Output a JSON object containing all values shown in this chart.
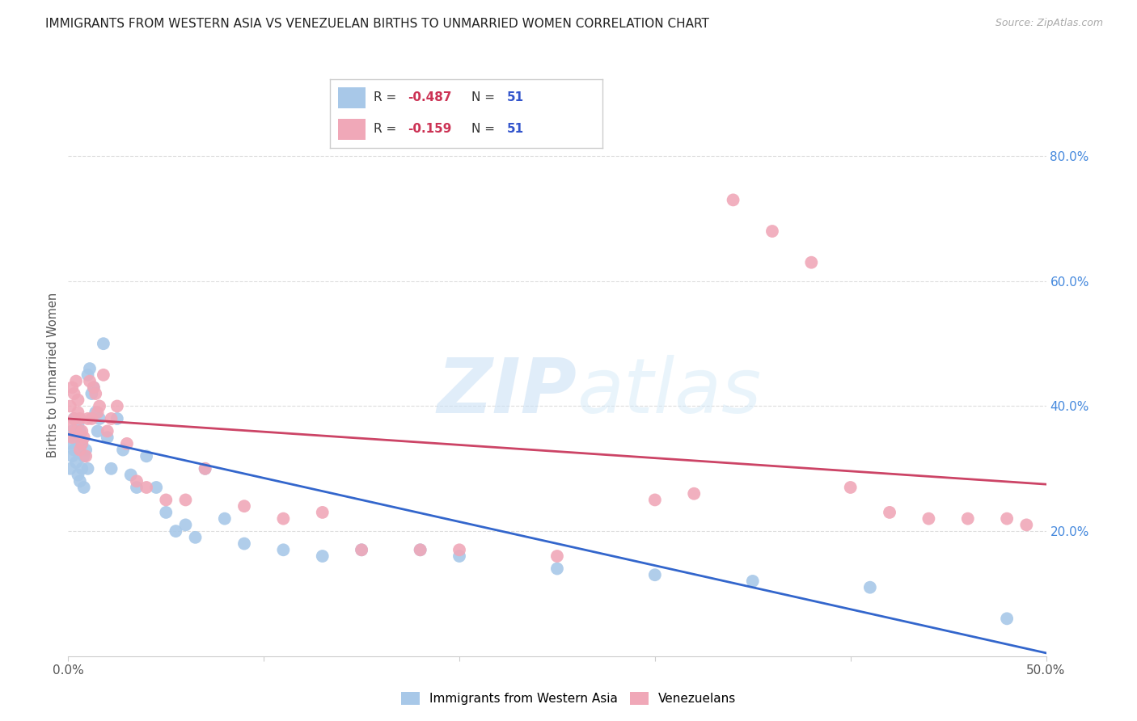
{
  "title": "IMMIGRANTS FROM WESTERN ASIA VS VENEZUELAN BIRTHS TO UNMARRIED WOMEN CORRELATION CHART",
  "source": "Source: ZipAtlas.com",
  "ylabel": "Births to Unmarried Women",
  "right_yticks": [
    "80.0%",
    "60.0%",
    "40.0%",
    "20.0%"
  ],
  "right_ytick_vals": [
    0.8,
    0.6,
    0.4,
    0.2
  ],
  "legend_blue_r": "-0.487",
  "legend_blue_n": "51",
  "legend_pink_r": "-0.159",
  "legend_pink_n": "51",
  "legend_label_blue": "Immigrants from Western Asia",
  "legend_label_pink": "Venezuelans",
  "blue_color": "#a8c8e8",
  "pink_color": "#f0a8b8",
  "blue_line_color": "#3366cc",
  "pink_line_color": "#cc4466",
  "watermark_zip": "ZIP",
  "watermark_atlas": "atlas",
  "background_color": "#ffffff",
  "blue_points_x": [
    0.001,
    0.001,
    0.002,
    0.002,
    0.003,
    0.003,
    0.004,
    0.004,
    0.005,
    0.005,
    0.006,
    0.006,
    0.007,
    0.007,
    0.008,
    0.008,
    0.009,
    0.01,
    0.01,
    0.011,
    0.012,
    0.013,
    0.014,
    0.015,
    0.016,
    0.018,
    0.02,
    0.022,
    0.025,
    0.028,
    0.032,
    0.035,
    0.04,
    0.045,
    0.05,
    0.055,
    0.06,
    0.065,
    0.07,
    0.08,
    0.09,
    0.11,
    0.13,
    0.15,
    0.18,
    0.2,
    0.25,
    0.3,
    0.35,
    0.41,
    0.48
  ],
  "blue_points_y": [
    0.34,
    0.3,
    0.36,
    0.32,
    0.38,
    0.33,
    0.35,
    0.31,
    0.37,
    0.29,
    0.36,
    0.28,
    0.34,
    0.3,
    0.32,
    0.27,
    0.33,
    0.45,
    0.3,
    0.46,
    0.42,
    0.43,
    0.39,
    0.36,
    0.38,
    0.5,
    0.35,
    0.3,
    0.38,
    0.33,
    0.29,
    0.27,
    0.32,
    0.27,
    0.23,
    0.2,
    0.21,
    0.19,
    0.3,
    0.22,
    0.18,
    0.17,
    0.16,
    0.17,
    0.17,
    0.16,
    0.14,
    0.13,
    0.12,
    0.11,
    0.06
  ],
  "pink_points_x": [
    0.001,
    0.001,
    0.002,
    0.002,
    0.003,
    0.003,
    0.004,
    0.004,
    0.005,
    0.005,
    0.006,
    0.006,
    0.007,
    0.007,
    0.008,
    0.009,
    0.01,
    0.011,
    0.012,
    0.013,
    0.014,
    0.015,
    0.016,
    0.018,
    0.02,
    0.022,
    0.025,
    0.03,
    0.035,
    0.04,
    0.05,
    0.06,
    0.07,
    0.09,
    0.11,
    0.13,
    0.15,
    0.18,
    0.2,
    0.25,
    0.3,
    0.32,
    0.34,
    0.36,
    0.38,
    0.4,
    0.42,
    0.44,
    0.46,
    0.48,
    0.49
  ],
  "pink_points_y": [
    0.4,
    0.37,
    0.43,
    0.35,
    0.42,
    0.38,
    0.44,
    0.36,
    0.41,
    0.39,
    0.38,
    0.33,
    0.36,
    0.34,
    0.35,
    0.32,
    0.38,
    0.44,
    0.38,
    0.43,
    0.42,
    0.39,
    0.4,
    0.45,
    0.36,
    0.38,
    0.4,
    0.34,
    0.28,
    0.27,
    0.25,
    0.25,
    0.3,
    0.24,
    0.22,
    0.23,
    0.17,
    0.17,
    0.17,
    0.16,
    0.25,
    0.26,
    0.73,
    0.68,
    0.63,
    0.27,
    0.23,
    0.22,
    0.22,
    0.22,
    0.21
  ],
  "xlim": [
    0.0,
    0.5
  ],
  "ylim": [
    0.0,
    0.9
  ],
  "blue_trendline_x": [
    0.0,
    0.5
  ],
  "blue_trendline_y": [
    0.355,
    0.005
  ],
  "pink_trendline_x": [
    0.0,
    0.5
  ],
  "pink_trendline_y": [
    0.38,
    0.275
  ]
}
